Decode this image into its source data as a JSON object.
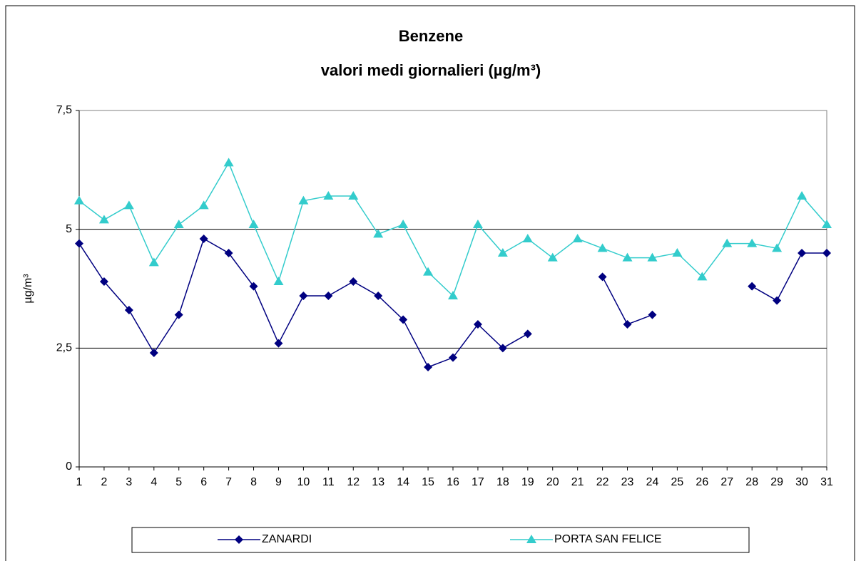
{
  "chart_data": {
    "type": "line",
    "title": "Benzene",
    "subtitle": "valori medi giornalieri (µg/m³)",
    "y_label": "µg/m³",
    "categories": [
      "1",
      "2",
      "3",
      "4",
      "5",
      "6",
      "7",
      "8",
      "9",
      "10",
      "11",
      "12",
      "13",
      "14",
      "15",
      "16",
      "17",
      "18",
      "19",
      "20",
      "21",
      "22",
      "23",
      "24",
      "25",
      "26",
      "27",
      "28",
      "29",
      "30",
      "31"
    ],
    "series": [
      {
        "name": "ZANARDI",
        "color": "#000080",
        "marker": "diamond",
        "values": [
          4.7,
          3.9,
          3.3,
          2.4,
          3.2,
          4.8,
          4.5,
          3.8,
          2.6,
          3.6,
          3.6,
          3.9,
          3.6,
          3.1,
          2.1,
          2.3,
          3.0,
          2.5,
          2.8,
          null,
          null,
          4.0,
          3.0,
          3.2,
          null,
          null,
          null,
          3.8,
          3.5,
          4.5,
          4.5
        ]
      },
      {
        "name": "PORTA SAN FELICE",
        "color": "#33CCCC",
        "marker": "triangle",
        "values": [
          5.6,
          5.2,
          5.5,
          4.3,
          5.1,
          5.5,
          6.4,
          5.1,
          3.9,
          5.6,
          5.7,
          5.7,
          4.9,
          5.1,
          4.1,
          3.6,
          5.1,
          4.5,
          4.8,
          4.4,
          4.8,
          4.6,
          4.4,
          4.4,
          4.5,
          4.0,
          4.7,
          4.7,
          4.6,
          5.7,
          5.1
        ]
      }
    ],
    "ylim": [
      0,
      7.5
    ],
    "yticks": [
      0,
      {
        "value": 2.5,
        "label": "2,5"
      },
      5,
      {
        "value": 7.5,
        "label": "7,5"
      }
    ],
    "grid": true,
    "legend": "bottom"
  }
}
